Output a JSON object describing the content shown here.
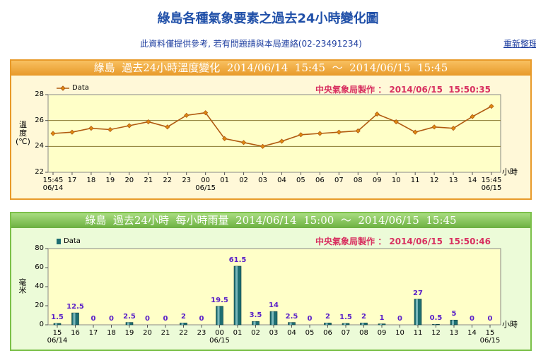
{
  "header": {
    "title": "綠島各種氣象要素之過去24小時變化圖",
    "subtitle": "此資料僅提供參考, 若有問題請與本局連絡(02-23491234)",
    "refresh": "重新整理"
  },
  "chart_data": [
    {
      "type": "line",
      "title": "綠島  過去24小時溫度變化  2014/06/14  15:45  ～  2014/06/15  15:45",
      "credit": "中央氣象局製作 ： 2014/06/15  15:50:35",
      "y_label": "溫\n度\n(℃)",
      "x_unit": "小時",
      "categories": [
        "15:45\n06/14",
        "17",
        "18",
        "19",
        "20",
        "21",
        "22",
        "23",
        "00\n06/15",
        "01",
        "02",
        "03",
        "04",
        "05",
        "06",
        "07",
        "08",
        "09",
        "10",
        "11",
        "12",
        "13",
        "14",
        "15:45\n06/15"
      ],
      "series": [
        {
          "name": "Data",
          "color": "#b05a10",
          "values": [
            25.0,
            25.1,
            25.4,
            25.3,
            25.6,
            25.9,
            25.5,
            26.4,
            26.6,
            24.6,
            24.3,
            24.0,
            24.4,
            24.9,
            25.0,
            25.1,
            25.2,
            26.5,
            25.9,
            25.1,
            25.5,
            25.4,
            26.3,
            27.1
          ]
        }
      ],
      "ylim": [
        22,
        28
      ],
      "yticks": [
        22,
        24,
        26,
        28
      ],
      "grid": true
    },
    {
      "type": "bar",
      "title": "綠島  過去24小時  每小時雨量  2014/06/14  15:00  ～  2014/06/15  15:45",
      "credit": "中央氣象局製作 ： 2014/06/15  15:50:46",
      "y_label": "毫米",
      "x_unit": "小時",
      "categories": [
        "15\n06/14",
        "16",
        "17",
        "18",
        "19",
        "20",
        "21",
        "22",
        "23",
        "00\n06/15",
        "01",
        "02",
        "03",
        "04",
        "05",
        "06",
        "07",
        "08",
        "09",
        "10",
        "11",
        "12",
        "13",
        "14",
        "15\n06/15"
      ],
      "series": [
        {
          "name": "Data",
          "color": "#1e6e72",
          "values": [
            1.5,
            12.5,
            0,
            0,
            2.5,
            0,
            0,
            2,
            0,
            19.5,
            61.5,
            3.5,
            14,
            2.5,
            0,
            2,
            1.5,
            2,
            1,
            0,
            27,
            0.5,
            5,
            0,
            0
          ]
        }
      ],
      "ylim": [
        0,
        80
      ],
      "yticks": [
        0,
        20,
        40,
        60,
        80
      ],
      "grid": false
    }
  ]
}
